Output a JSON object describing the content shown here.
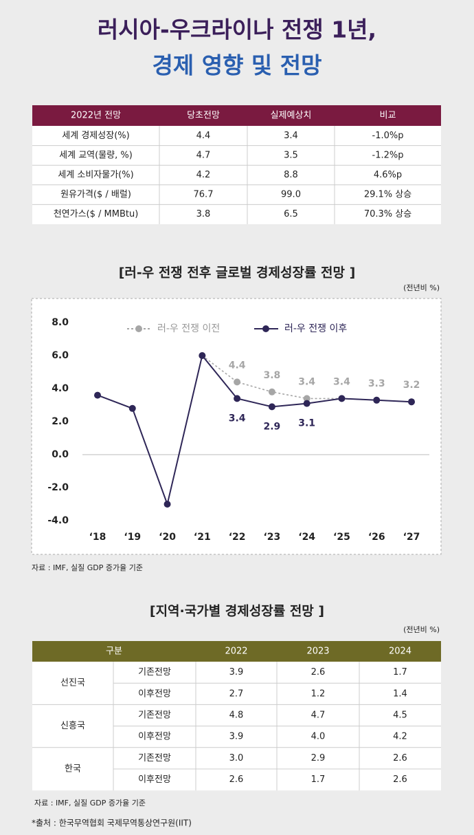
{
  "title": {
    "line1": "러시아-우크라이나 전쟁 1년,",
    "line2": "경제 영향 및 전망"
  },
  "table1": {
    "header": [
      "2022년 전망",
      "당초전망",
      "실제예상치",
      "비교"
    ],
    "rows": [
      [
        "세계 경제성장(%)",
        "4.4",
        "3.4",
        "-1.0%p"
      ],
      [
        "세계 교역(물량, %)",
        "4.7",
        "3.5",
        "-1.2%p"
      ],
      [
        "세계 소비자물가(%)",
        "4.2",
        "8.8",
        "4.6%p"
      ],
      [
        "원유가격($ / 배럴)",
        "76.7",
        "99.0",
        "29.1% 상승"
      ],
      [
        "천연가스($ / MMBtu)",
        "3.8",
        "6.5",
        "70.3% 상승"
      ]
    ]
  },
  "chart_data": {
    "type": "line",
    "title": "[러-우 전쟁 전후 글로벌 경제성장률 전망 ]",
    "unit": "(전년비 %)",
    "categories": [
      "‘18",
      "‘19",
      "‘20",
      "‘21",
      "‘22",
      "‘23",
      "‘24",
      "‘25",
      "‘26",
      "‘27"
    ],
    "series": [
      {
        "name": "러-우 전쟁 이전",
        "color": "#a6a6a6",
        "dashed": true,
        "values": [
          null,
          null,
          null,
          6.0,
          4.4,
          3.8,
          3.4,
          3.4,
          3.3,
          3.2
        ],
        "value_labels": [
          null,
          null,
          null,
          null,
          "4.4",
          "3.8",
          "3.4",
          "3.4",
          "3.3",
          "3.2"
        ]
      },
      {
        "name": "러-우 전쟁 이후",
        "color": "#2e2657",
        "dashed": false,
        "values": [
          3.6,
          2.8,
          -3.0,
          6.0,
          3.4,
          2.9,
          3.1,
          3.4,
          3.3,
          3.2
        ],
        "value_labels": [
          null,
          null,
          null,
          null,
          "3.4",
          "2.9",
          "3.1",
          null,
          null,
          null
        ]
      }
    ],
    "ylim": [
      -4,
      8
    ],
    "yticks": [
      {
        "value": -4,
        "label": "-4.0"
      },
      {
        "value": -2,
        "label": "-2.0"
      },
      {
        "value": 0,
        "label": "0.0"
      },
      {
        "value": 2,
        "label": "2.0"
      },
      {
        "value": 4,
        "label": "4.0"
      },
      {
        "value": 6,
        "label": "6.0"
      },
      {
        "value": 8,
        "label": "8.0"
      }
    ],
    "source": "자료 : IMF, 실질 GDP 증가율 기준"
  },
  "table2": {
    "title": "[지역·국가별 경제성장률 전망 ]",
    "unit": "(전년비 %)",
    "header": [
      "구분",
      "2022",
      "2023",
      "2024"
    ],
    "groups": [
      {
        "name": "선진국",
        "rows": [
          {
            "label": "기존전망",
            "values": [
              "3.9",
              "2.6",
              "1.7"
            ]
          },
          {
            "label": "이후전망",
            "values": [
              "2.7",
              "1.2",
              "1.4"
            ]
          }
        ]
      },
      {
        "name": "신흥국",
        "rows": [
          {
            "label": "기존전망",
            "values": [
              "4.8",
              "4.7",
              "4.5"
            ]
          },
          {
            "label": "이후전망",
            "values": [
              "3.9",
              "4.0",
              "4.2"
            ]
          }
        ]
      },
      {
        "name": "한국",
        "rows": [
          {
            "label": "기존전망",
            "values": [
              "3.0",
              "2.9",
              "2.6"
            ]
          },
          {
            "label": "이후전망",
            "values": [
              "2.6",
              "1.7",
              "2.6"
            ]
          }
        ]
      }
    ],
    "source": "자료 : IMF, 실질 GDP 증가율 기준"
  },
  "credit": "*출처 : 한국무역협회 국제무역통상연구원(IIT)"
}
